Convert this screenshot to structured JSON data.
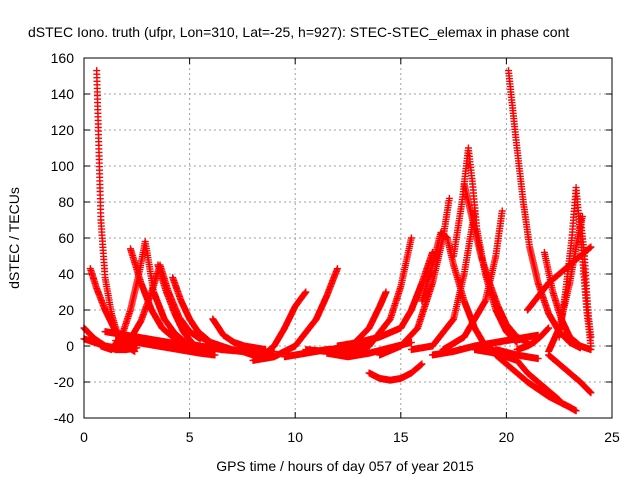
{
  "chart_data": {
    "type": "scatter",
    "title": "dSTEC Iono. truth (ufpr, Lon=310, Lat=-25, h=927): STEC-STEC_elemax in phase cont",
    "xlabel": "GPS time / hours of day 057 of year 2015",
    "ylabel": "dSTEC  / TECUs",
    "xlim": [
      0,
      25
    ],
    "ylim": [
      -40,
      160
    ],
    "xticks": [
      0,
      5,
      10,
      15,
      20,
      25
    ],
    "yticks": [
      -40,
      -20,
      0,
      20,
      40,
      60,
      80,
      100,
      120,
      140,
      160
    ],
    "grid": true,
    "marker": "+",
    "color": "#ff0000",
    "series": [
      {
        "x": [
          0.6,
          0.8,
          1.0,
          1.3,
          1.6,
          2.0,
          2.3
        ],
        "y": [
          153,
          70,
          38,
          18,
          6,
          0,
          -2
        ]
      },
      {
        "x": [
          0.3,
          0.6,
          1.0,
          1.5,
          2.0,
          2.4
        ],
        "y": [
          43,
          32,
          20,
          8,
          0,
          -3
        ]
      },
      {
        "x": [
          0.0,
          0.5,
          1.0,
          1.5,
          2.0,
          2.5
        ],
        "y": [
          10,
          4,
          0,
          -2,
          -2,
          -1
        ]
      },
      {
        "x": [
          0.0,
          0.5,
          1.0,
          1.5,
          2.0
        ],
        "y": [
          4,
          2,
          0,
          -1,
          -1
        ]
      },
      {
        "x": [
          0.8,
          1.3,
          1.8,
          2.2,
          2.6,
          2.9,
          3.3,
          3.8,
          4.3,
          4.8
        ],
        "y": [
          0,
          -2,
          6,
          20,
          40,
          58,
          30,
          15,
          7,
          2
        ]
      },
      {
        "x": [
          2.2,
          2.7,
          3.2,
          3.7,
          4.2,
          4.6
        ],
        "y": [
          54,
          35,
          20,
          10,
          5,
          2
        ]
      },
      {
        "x": [
          1.7,
          2.2,
          2.7,
          3.2,
          3.6,
          4.0,
          4.5,
          5.0,
          5.5
        ],
        "y": [
          0,
          4,
          14,
          30,
          45,
          30,
          16,
          8,
          4
        ]
      },
      {
        "x": [
          3.5,
          3.9,
          4.3,
          4.7,
          5.1,
          5.5,
          5.9
        ],
        "y": [
          45,
          30,
          18,
          8,
          2,
          -2,
          -3
        ]
      },
      {
        "x": [
          4.2,
          4.6,
          5.0,
          5.4,
          5.8,
          6.0
        ],
        "y": [
          38,
          25,
          15,
          8,
          4,
          2
        ]
      },
      {
        "x": [
          1.5,
          2.5,
          3.5,
          4.5,
          5.5,
          6.2
        ],
        "y": [
          3,
          2,
          0,
          -2,
          -4,
          -5
        ]
      },
      {
        "x": [
          1.0,
          2.0,
          3.0,
          4.0,
          5.0,
          6.0
        ],
        "y": [
          8,
          6,
          4,
          2,
          0,
          -2
        ]
      },
      {
        "x": [
          6.1,
          6.6,
          7.1,
          7.6,
          8.1,
          8.6
        ],
        "y": [
          15,
          6,
          2,
          0,
          -1,
          -2
        ]
      },
      {
        "x": [
          5.5,
          6.0,
          6.5,
          7.0,
          7.5,
          8.0,
          8.5,
          9.0
        ],
        "y": [
          5,
          2,
          0,
          -2,
          -3,
          -4,
          -4,
          -3
        ]
      },
      {
        "x": [
          4.5,
          5.5,
          6.5,
          7.5,
          8.5
        ],
        "y": [
          2,
          0,
          -2,
          -3,
          -3
        ]
      },
      {
        "x": [
          7.5,
          8.0,
          8.5,
          9.0,
          9.5,
          10.0,
          10.5
        ],
        "y": [
          -3,
          -5,
          -5,
          0,
          10,
          22,
          30
        ]
      },
      {
        "x": [
          8.0,
          9.0,
          10.0,
          11.0,
          11.5,
          12.0
        ],
        "y": [
          -8,
          -6,
          0,
          15,
          28,
          43
        ]
      },
      {
        "x": [
          9.5,
          10.5,
          11.5,
          12.5,
          13.5
        ],
        "y": [
          -6,
          -4,
          -2,
          -1,
          0
        ]
      },
      {
        "x": [
          10.5,
          11.5,
          12.5,
          13.5,
          14.0,
          14.3
        ],
        "y": [
          -2,
          -3,
          -2,
          10,
          22,
          30
        ]
      },
      {
        "x": [
          11.5,
          12.5,
          13.5,
          14.5,
          15.5
        ],
        "y": [
          -4,
          -6,
          -4,
          -1,
          2
        ]
      },
      {
        "x": [
          12.5,
          13.5,
          14.5,
          15.0,
          15.5
        ],
        "y": [
          -3,
          0,
          15,
          33,
          60
        ]
      },
      {
        "x": [
          12.0,
          13.0,
          14.0,
          15.0,
          15.5,
          16.0,
          16.5
        ],
        "y": [
          0,
          2,
          5,
          10,
          20,
          35,
          52
        ]
      },
      {
        "x": [
          13.5,
          14.0,
          14.5,
          15.0,
          15.5,
          16.0
        ],
        "y": [
          -15,
          -18,
          -19,
          -18,
          -15,
          -10
        ]
      },
      {
        "x": [
          14.0,
          15.0,
          15.8,
          16.5,
          17.0,
          17.3
        ],
        "y": [
          -5,
          0,
          10,
          35,
          60,
          82
        ]
      },
      {
        "x": [
          16.0,
          16.5,
          16.9,
          17.2,
          17.5,
          18.0,
          18.5,
          19.0,
          19.5
        ],
        "y": [
          25,
          45,
          63,
          60,
          45,
          25,
          10,
          0,
          -3
        ]
      },
      {
        "x": [
          15.5,
          16.5,
          17.5,
          18.0,
          18.5
        ],
        "y": [
          -2,
          0,
          15,
          40,
          75
        ]
      },
      {
        "x": [
          17.5,
          17.9,
          18.2,
          18.4,
          18.6,
          19.0,
          19.5,
          20.0,
          20.5
        ],
        "y": [
          50,
          80,
          110,
          90,
          65,
          40,
          20,
          8,
          2
        ]
      },
      {
        "x": [
          18.0,
          18.4,
          18.8,
          19.2,
          19.6,
          20.0,
          20.5,
          21.0
        ],
        "y": [
          90,
          70,
          50,
          35,
          22,
          12,
          5,
          2
        ]
      },
      {
        "x": [
          17.0,
          18.0,
          19.0,
          19.5,
          19.8
        ],
        "y": [
          -2,
          5,
          25,
          50,
          75
        ]
      },
      {
        "x": [
          16.5,
          17.5,
          18.5,
          19.5,
          20.5,
          21.5
        ],
        "y": [
          -5,
          -3,
          0,
          2,
          4,
          6
        ]
      },
      {
        "x": [
          20.1,
          20.5,
          20.8,
          21.1,
          21.5,
          22.0,
          22.5,
          23.0,
          23.5
        ],
        "y": [
          153,
          110,
          80,
          55,
          35,
          18,
          8,
          2,
          -1
        ]
      },
      {
        "x": [
          18.5,
          19.5,
          20.5,
          21.0,
          21.5,
          22.0,
          22.5
        ],
        "y": [
          -2,
          -4,
          -8,
          -15,
          -20,
          -25,
          -30
        ]
      },
      {
        "x": [
          19.5,
          20.5,
          21.0,
          21.5
        ],
        "y": [
          -2,
          -5,
          -6,
          -7
        ]
      },
      {
        "x": [
          19.5,
          20.5,
          21.0,
          21.5,
          22.0,
          22.5,
          23.0,
          23.3
        ],
        "y": [
          -5,
          -15,
          -20,
          -24,
          -28,
          -31,
          -34,
          -36
        ]
      },
      {
        "x": [
          20.5,
          21.0,
          21.3,
          21.6,
          22.0
        ],
        "y": [
          -2,
          0,
          2,
          5,
          10
        ]
      },
      {
        "x": [
          21.8,
          22.2,
          22.6,
          23.0,
          23.5,
          24.0
        ],
        "y": [
          52,
          30,
          15,
          5,
          0,
          -2
        ]
      },
      {
        "x": [
          22.5,
          22.8,
          23.1,
          23.3,
          23.6,
          23.8,
          24.0
        ],
        "y": [
          5,
          30,
          60,
          88,
          50,
          20,
          0
        ]
      },
      {
        "x": [
          22.0,
          22.5,
          23.0,
          23.3,
          23.6
        ],
        "y": [
          -3,
          10,
          35,
          55,
          72
        ]
      },
      {
        "x": [
          23.5,
          23.7,
          23.8,
          23.9,
          24.0
        ],
        "y": [
          72,
          50,
          30,
          15,
          5
        ]
      },
      {
        "x": [
          22.0,
          22.5,
          23.0,
          23.5,
          24.0
        ],
        "y": [
          -5,
          -10,
          -15,
          -20,
          -26
        ]
      },
      {
        "x": [
          21.0,
          22.0,
          23.0,
          24.0
        ],
        "y": [
          20,
          35,
          45,
          55
        ]
      }
    ]
  }
}
